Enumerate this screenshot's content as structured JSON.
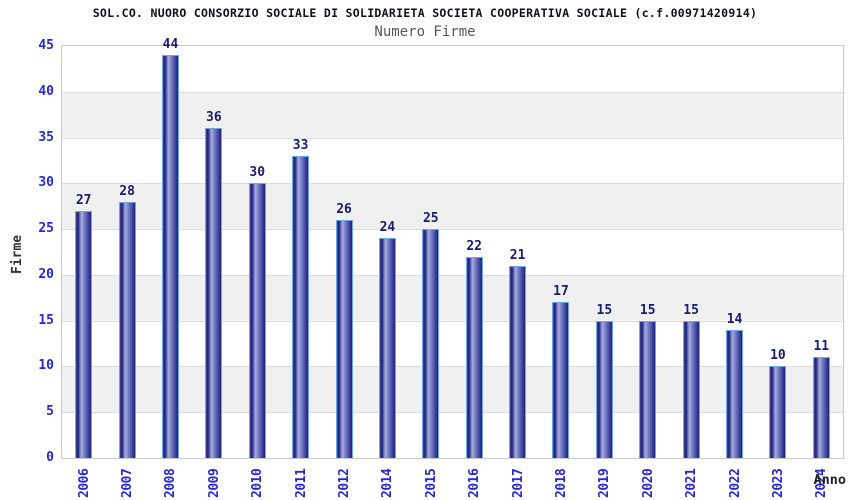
{
  "chart_data": {
    "type": "bar",
    "title": "SOL.CO. NUORO CONSORZIO SOCIALE DI SOLIDARIETA SOCIETA COOPERATIVA SOCIALE (c.f.00971420914)",
    "subtitle": "Numero Firme",
    "xlabel": "Anno",
    "ylabel": "Firme",
    "categories": [
      "2006",
      "2007",
      "2008",
      "2009",
      "2010",
      "2011",
      "2012",
      "2014",
      "2015",
      "2016",
      "2017",
      "2018",
      "2019",
      "2020",
      "2021",
      "2022",
      "2023",
      "2024"
    ],
    "values": [
      27,
      28,
      44,
      36,
      30,
      33,
      26,
      24,
      25,
      22,
      21,
      17,
      15,
      15,
      15,
      14,
      10,
      11
    ],
    "ylim": [
      0,
      45
    ],
    "yticks": [
      0,
      5,
      10,
      15,
      20,
      25,
      30,
      35,
      40,
      45
    ],
    "grid": "horizontal",
    "banded_background": true,
    "bar_value_labels": true,
    "legend_position": "none"
  },
  "colors": {
    "bar_dark": "#1f1f80",
    "bar_mid": "#44449c",
    "bar_highlight": "#a6aede",
    "bar_outline": "#6aa8e8",
    "tick_label": "#2828cc",
    "value_label": "#1b1b6e",
    "axis_title": "#333333",
    "title_text": "#101018",
    "subtitle_text": "#555555",
    "band": "#f0f0f0",
    "gridline": "#dcdcdc",
    "plot_border": "#c9c9c9",
    "background": "#ffffff"
  }
}
